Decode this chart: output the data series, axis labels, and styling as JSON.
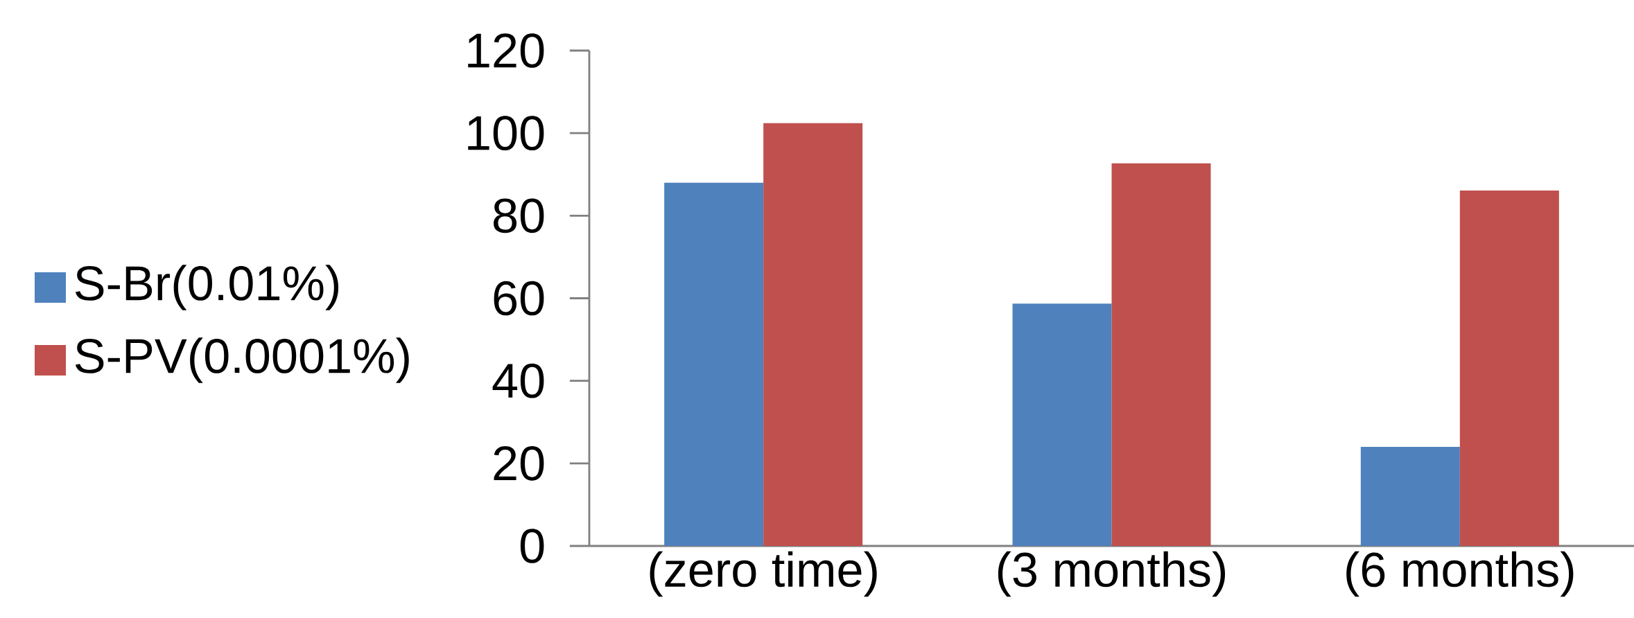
{
  "chart_data": {
    "type": "bar",
    "categories": [
      "(zero time)",
      "(3 months)",
      "(6 months)"
    ],
    "series": [
      {
        "name": "S-Br(0.01%)",
        "color": "#4f81bd",
        "values": [
          88,
          58.7,
          24
        ]
      },
      {
        "name": "S-PV(0.0001%)",
        "color": "#c0504d",
        "values": [
          102.4,
          92.7,
          86.1
        ]
      }
    ],
    "ylim": [
      0,
      120
    ],
    "yticks": [
      0,
      20,
      40,
      60,
      80,
      100,
      120
    ],
    "legend": "left"
  }
}
